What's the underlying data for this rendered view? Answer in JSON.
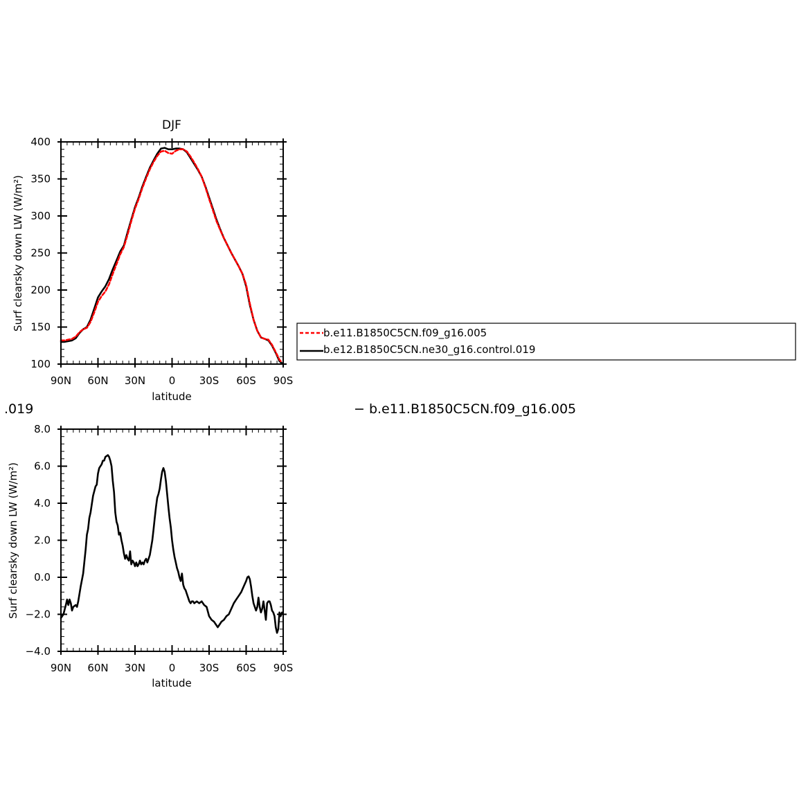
{
  "chart_data": [
    {
      "type": "line",
      "title": "DJF",
      "xlabel": "latitude",
      "ylabel": "Surf clearsky down LW (W/m²)",
      "xlim": [
        90,
        -90
      ],
      "ylim": [
        100,
        400
      ],
      "x_ticks": [
        {
          "value": 90,
          "label": "90N"
        },
        {
          "value": 60,
          "label": "60N"
        },
        {
          "value": 30,
          "label": "30N"
        },
        {
          "value": 0,
          "label": "0"
        },
        {
          "value": -30,
          "label": "30S"
        },
        {
          "value": -60,
          "label": "60S"
        },
        {
          "value": -90,
          "label": "90S"
        }
      ],
      "y_ticks": [
        {
          "value": 100,
          "label": "100"
        },
        {
          "value": 150,
          "label": "150"
        },
        {
          "value": 200,
          "label": "200"
        },
        {
          "value": 250,
          "label": "250"
        },
        {
          "value": 300,
          "label": "300"
        },
        {
          "value": 350,
          "label": "350"
        },
        {
          "value": 400,
          "label": "400"
        }
      ],
      "legend": {
        "placement": "right",
        "entries": [
          {
            "name": "b.e11.B1850C5CN.f09_g16.005",
            "color": "#ff0000",
            "dash": true
          },
          {
            "name": "b.e12.B1850C5CN.ne30_g16.control.019",
            "color": "#000000",
            "dash": false
          }
        ]
      },
      "series": [
        {
          "name": "b.e12.B1850C5CN.ne30_g16.control.019",
          "color": "#000000",
          "dash": false,
          "x": [
            90,
            87,
            84,
            81,
            78,
            75,
            72,
            69,
            66,
            63,
            60,
            57,
            54,
            51,
            48,
            45,
            42,
            39,
            36,
            33,
            30,
            27,
            24,
            21,
            18,
            15,
            12,
            9,
            6,
            3,
            0,
            -3,
            -6,
            -9,
            -12,
            -15,
            -18,
            -21,
            -24,
            -27,
            -30,
            -33,
            -36,
            -39,
            -42,
            -45,
            -48,
            -51,
            -54,
            -57,
            -60,
            -63,
            -66,
            -69,
            -72,
            -75,
            -78,
            -81,
            -84,
            -87,
            -89
          ],
          "y": [
            130,
            130,
            131,
            132,
            135,
            142,
            147,
            150,
            160,
            175,
            190,
            198,
            205,
            215,
            228,
            240,
            252,
            260,
            278,
            295,
            312,
            325,
            340,
            353,
            365,
            375,
            384,
            391,
            392,
            390,
            390,
            391,
            391,
            390,
            386,
            378,
            370,
            362,
            353,
            340,
            325,
            310,
            295,
            282,
            270,
            260,
            250,
            241,
            232,
            222,
            205,
            180,
            160,
            145,
            136,
            134,
            132,
            125,
            115,
            104,
            101
          ]
        },
        {
          "name": "b.e11.B1850C5CN.f09_g16.005",
          "color": "#ff0000",
          "dash": true,
          "x": [
            90,
            87,
            84,
            81,
            78,
            75,
            72,
            69,
            66,
            63,
            60,
            57,
            54,
            51,
            48,
            45,
            42,
            39,
            36,
            33,
            30,
            27,
            24,
            21,
            18,
            15,
            12,
            9,
            6,
            3,
            0,
            -3,
            -6,
            -9,
            -12,
            -15,
            -18,
            -21,
            -24,
            -27,
            -30,
            -33,
            -36,
            -39,
            -42,
            -45,
            -48,
            -51,
            -54,
            -57,
            -60,
            -63,
            -66,
            -69,
            -72,
            -75,
            -78,
            -81,
            -84,
            -87,
            -89
          ],
          "y": [
            132,
            132,
            133,
            134,
            137,
            143,
            147,
            149,
            157,
            170,
            184,
            192,
            198,
            208,
            222,
            235,
            248,
            258,
            275,
            293,
            310,
            323,
            338,
            351,
            363,
            373,
            381,
            387,
            388,
            385,
            384,
            388,
            390,
            390,
            387,
            380,
            372,
            363,
            353,
            339,
            323,
            308,
            293,
            281,
            270,
            260,
            250,
            241,
            232,
            222,
            207,
            182,
            160,
            145,
            136,
            134,
            133,
            126,
            116,
            106,
            102
          ]
        }
      ]
    },
    {
      "type": "line",
      "title": "",
      "xlabel": "latitude",
      "ylabel": "Surf clearsky down LW (W/m²)",
      "xlim": [
        90,
        -90
      ],
      "ylim": [
        -4.0,
        8.0
      ],
      "x_ticks": [
        {
          "value": 90,
          "label": "90N"
        },
        {
          "value": 60,
          "label": "60N"
        },
        {
          "value": 30,
          "label": "30N"
        },
        {
          "value": 0,
          "label": "0"
        },
        {
          "value": -30,
          "label": "30S"
        },
        {
          "value": -60,
          "label": "60S"
        },
        {
          "value": -90,
          "label": "90S"
        }
      ],
      "y_ticks": [
        {
          "value": -4.0,
          "label": "−4.0"
        },
        {
          "value": -2.0,
          "label": "−2.0"
        },
        {
          "value": 0.0,
          "label": "0.0"
        },
        {
          "value": 2.0,
          "label": "2.0"
        },
        {
          "value": 4.0,
          "label": "4.0"
        },
        {
          "value": 6.0,
          "label": "6.0"
        },
        {
          "value": 8.0,
          "label": "8.0"
        }
      ],
      "series": [
        {
          "color": "#000000",
          "dash": false,
          "x": [
            90,
            88,
            86,
            85,
            84,
            83,
            82,
            81,
            80,
            78,
            77,
            76,
            74,
            72,
            70,
            69,
            68,
            67,
            66,
            64,
            62,
            61,
            60,
            59,
            57,
            56,
            55,
            54,
            53,
            52,
            51,
            50,
            49,
            48,
            47,
            46,
            45,
            44,
            43,
            42,
            41,
            40,
            39,
            38,
            37,
            36,
            35,
            34,
            33,
            32,
            31,
            30,
            29,
            28,
            27,
            26,
            25,
            24,
            23,
            22,
            21,
            20,
            19,
            18,
            17,
            16,
            15,
            14,
            13,
            12,
            11,
            10,
            9,
            8,
            7,
            6,
            5,
            4,
            3,
            2,
            1,
            0,
            -1,
            -2,
            -3,
            -4,
            -5,
            -6,
            -7,
            -8,
            -9,
            -10,
            -11,
            -12,
            -13,
            -14,
            -15,
            -16,
            -17,
            -18,
            -20,
            -22,
            -24,
            -26,
            -28,
            -30,
            -32,
            -34,
            -36,
            -37,
            -38,
            -39,
            -40,
            -42,
            -44,
            -46,
            -48,
            -50,
            -52,
            -54,
            -56,
            -58,
            -60,
            -61,
            -62,
            -63,
            -64,
            -65,
            -66,
            -67,
            -68,
            -69,
            -70,
            -71,
            -72,
            -73,
            -74,
            -75,
            -76,
            -77,
            -78,
            -79,
            -80,
            -81,
            -82,
            -83,
            -84,
            -85,
            -86,
            -87,
            -88,
            -89,
            -90
          ],
          "y": [
            -2.2,
            -2.0,
            -1.5,
            -1.2,
            -1.5,
            -1.2,
            -1.4,
            -1.8,
            -1.6,
            -1.5,
            -1.6,
            -1.3,
            -0.5,
            0.2,
            1.5,
            2.3,
            2.6,
            3.2,
            3.5,
            4.4,
            4.9,
            5.0,
            5.6,
            5.9,
            6.1,
            6.3,
            6.3,
            6.5,
            6.55,
            6.6,
            6.5,
            6.3,
            6.0,
            5.2,
            4.6,
            3.5,
            3.0,
            2.8,
            2.3,
            2.4,
            2.0,
            1.7,
            1.3,
            1.0,
            1.2,
            1.0,
            0.9,
            1.4,
            0.7,
            0.9,
            0.8,
            0.6,
            0.8,
            0.6,
            0.7,
            0.9,
            0.7,
            0.8,
            0.7,
            0.9,
            1.0,
            0.8,
            1.0,
            1.2,
            1.6,
            2.0,
            2.6,
            3.2,
            3.8,
            4.3,
            4.5,
            4.8,
            5.3,
            5.7,
            5.9,
            5.7,
            5.2,
            4.5,
            3.8,
            3.2,
            2.7,
            2.0,
            1.5,
            1.1,
            0.8,
            0.5,
            0.3,
            0.0,
            -0.2,
            0.2,
            -0.4,
            -0.6,
            -0.7,
            -0.9,
            -1.1,
            -1.3,
            -1.4,
            -1.3,
            -1.3,
            -1.4,
            -1.3,
            -1.4,
            -1.3,
            -1.5,
            -1.6,
            -2.1,
            -2.3,
            -2.4,
            -2.6,
            -2.7,
            -2.6,
            -2.5,
            -2.4,
            -2.3,
            -2.1,
            -2.0,
            -1.7,
            -1.4,
            -1.2,
            -1.0,
            -0.8,
            -0.5,
            -0.2,
            0.0,
            0.05,
            -0.1,
            -0.5,
            -1.0,
            -1.4,
            -1.6,
            -1.8,
            -1.6,
            -1.1,
            -1.6,
            -1.9,
            -1.7,
            -1.3,
            -1.8,
            -2.3,
            -1.4,
            -1.3,
            -1.3,
            -1.5,
            -1.8,
            -1.9,
            -2.1,
            -2.7,
            -3.0,
            -2.8,
            -1.9,
            -2.1,
            -1.9,
            -2.0
          ]
        }
      ]
    }
  ],
  "strip": {
    "left_text": ".019",
    "right_text": "− b.e11.B1850C5CN.f09_g16.005"
  }
}
